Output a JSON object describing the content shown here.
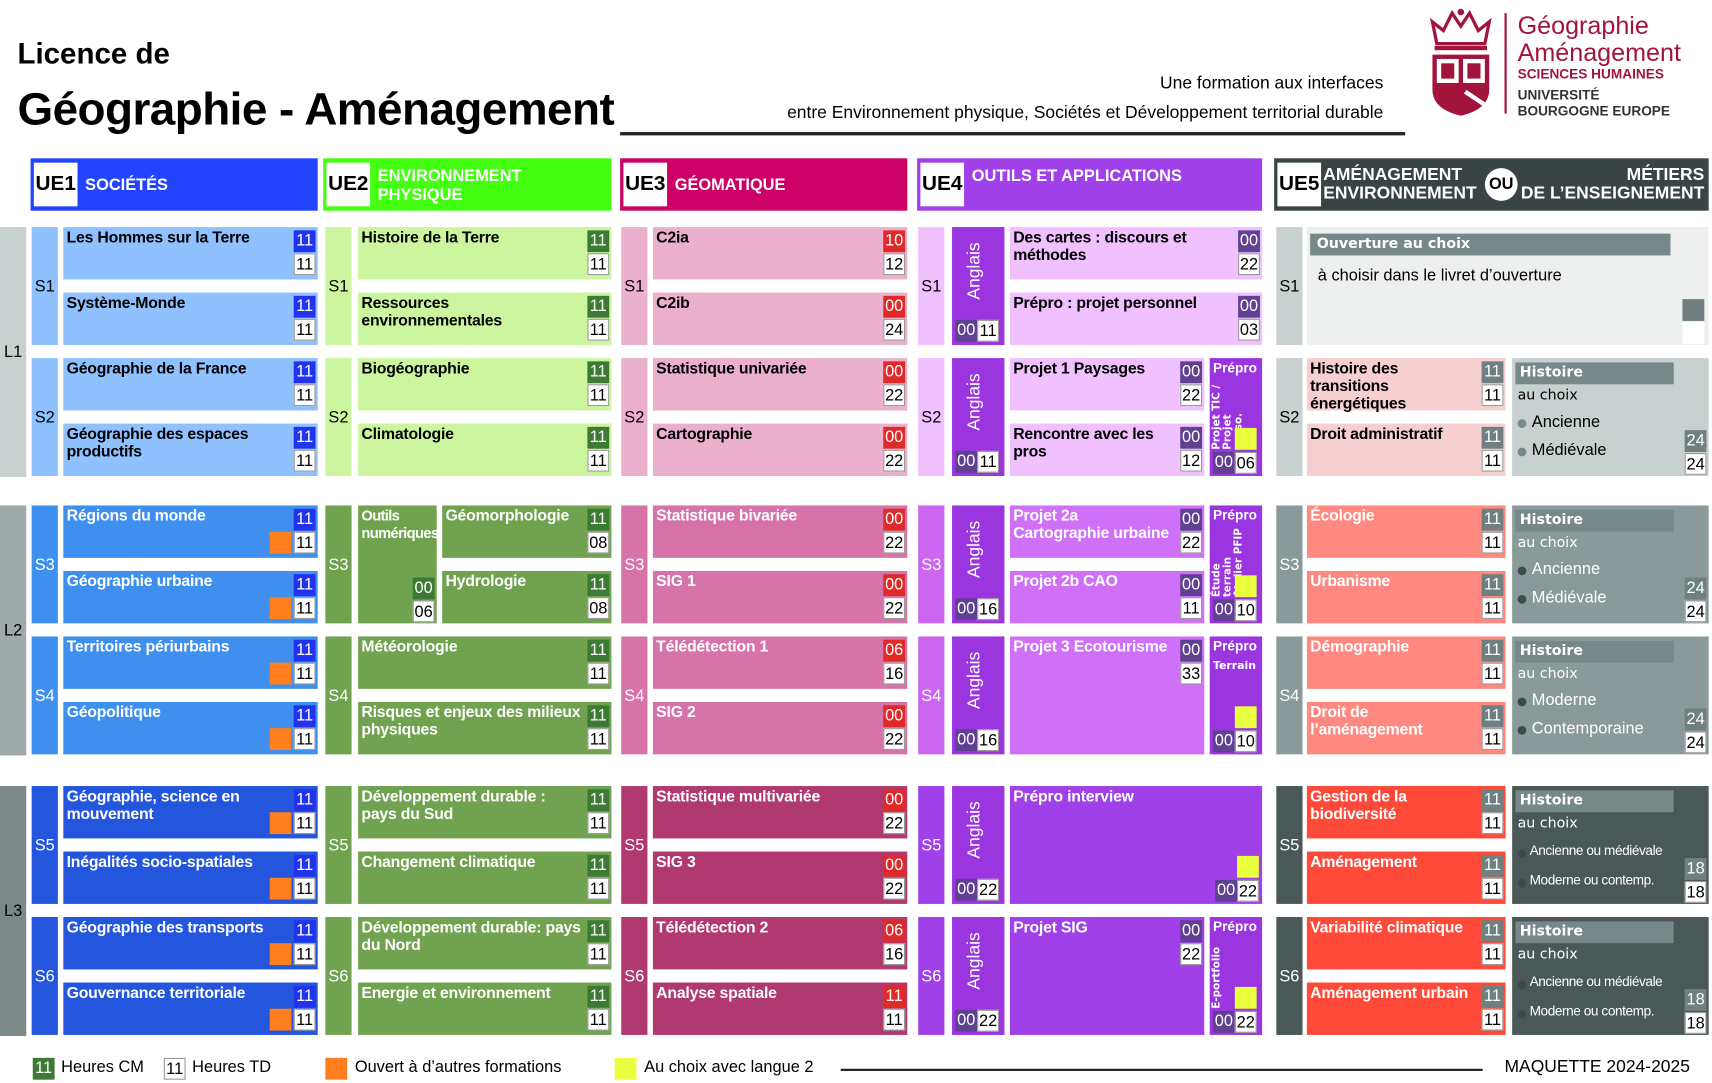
{
  "header": {
    "line1": "Licence de",
    "line2": "Géographie - Aménagement",
    "tagline1": "Une formation aux interfaces",
    "tagline2": "entre Environnement physique, Sociétés et Développement territorial durable"
  },
  "logo": {
    "l1": "Géographie",
    "l2": "Aménagement",
    "l3": "SCIENCES HUMAINES",
    "l4": "UNIVERSITÉ",
    "l5": "BOURGOGNE EUROPE",
    "color": "#a3143c"
  },
  "years": [
    "L1",
    "L2",
    "L3"
  ],
  "year_colors": [
    "#c8d0d0",
    "#a0aaaa",
    "#7d8888"
  ],
  "ues": [
    {
      "code": "UE1",
      "title": "SOCIÉTÉS",
      "color": "#2244ff",
      "colors": {
        "course": [
          "#8fc1ff",
          "#3f8fef",
          "#2456dd"
        ],
        "text": [
          "#000",
          "#fff",
          "#fff"
        ],
        "sem": [
          "#8fc1ff",
          "#3f8fef",
          "#2456dd"
        ],
        "cm": "#2233ee"
      },
      "semesters": [
        {
          "label": "S1",
          "courses": [
            {
              "name": "Les Hommes sur la Terre",
              "cm": "11",
              "td": "11"
            },
            {
              "name": "Système-Monde",
              "cm": "11",
              "td": "11"
            }
          ]
        },
        {
          "label": "S2",
          "courses": [
            {
              "name": "Géographie de la France",
              "cm": "11",
              "td": "11"
            },
            {
              "name": "Géographie des espaces productifs",
              "cm": "11",
              "td": "11"
            }
          ]
        },
        {
          "label": "S3",
          "courses": [
            {
              "name": "Régions du monde",
              "cm": "11",
              "td": "11",
              "open": true
            },
            {
              "name": "Géographie urbaine",
              "cm": "11",
              "td": "11",
              "open": true
            }
          ]
        },
        {
          "label": "S4",
          "courses": [
            {
              "name": "Territoires périurbains",
              "cm": "11",
              "td": "11",
              "open": true
            },
            {
              "name": "Géopolitique",
              "cm": "11",
              "td": "11",
              "open": true
            }
          ]
        },
        {
          "label": "S5",
          "courses": [
            {
              "name": "Géographie, science en mouvement",
              "cm": "11",
              "td": "11",
              "open": true
            },
            {
              "name": "Inégalités socio-spatiales",
              "cm": "11",
              "td": "11",
              "open": true
            }
          ]
        },
        {
          "label": "S6",
          "courses": [
            {
              "name": "Géographie des transports",
              "cm": "11",
              "td": "11",
              "open": true
            },
            {
              "name": "Gouvernance territoriale",
              "cm": "11",
              "td": "11",
              "open": true
            }
          ]
        }
      ]
    },
    {
      "code": "UE2",
      "title": "ENVIRONNEMENT PHYSIQUE",
      "color": "#44ff11",
      "colors": {
        "course": [
          "#ccf5a0",
          "#70a250",
          "#70a250"
        ],
        "text": [
          "#000",
          "#fff",
          "#fff"
        ],
        "sem": [
          "#ccf5a0",
          "#70a250",
          "#70a250"
        ],
        "cm": "#3d7a33"
      },
      "semesters": [
        {
          "label": "S1",
          "courses": [
            {
              "name": "Histoire de la Terre",
              "cm": "11",
              "td": "11"
            },
            {
              "name": "Ressources environnementales",
              "cm": "11",
              "td": "11"
            }
          ]
        },
        {
          "label": "S2",
          "courses": [
            {
              "name": "Biogéographie",
              "cm": "11",
              "td": "11"
            },
            {
              "name": "Climatologie",
              "cm": "11",
              "td": "11"
            }
          ]
        },
        {
          "label": "S3",
          "split": {
            "name": "Outils numériques",
            "cm": "00",
            "td": "06"
          },
          "courses": [
            {
              "name": "Géomorphologie",
              "cm": "11",
              "td": "08"
            },
            {
              "name": "Hydrologie",
              "cm": "11",
              "td": "08"
            }
          ]
        },
        {
          "label": "S4",
          "courses": [
            {
              "name": "Météorologie",
              "cm": "11",
              "td": "11"
            },
            {
              "name": "Risques et enjeux des milieux physiques",
              "cm": "11",
              "td": "11"
            }
          ]
        },
        {
          "label": "S5",
          "courses": [
            {
              "name": "Développement durable : pays du Sud",
              "cm": "11",
              "td": "11"
            },
            {
              "name": "Changement climatique",
              "cm": "11",
              "td": "11"
            }
          ]
        },
        {
          "label": "S6",
          "courses": [
            {
              "name": "Développement durable: pays du Nord",
              "cm": "11",
              "td": "11"
            },
            {
              "name": "Energie et environnement",
              "cm": "11",
              "td": "11"
            }
          ]
        }
      ]
    },
    {
      "code": "UE3",
      "title": "GÉOMATIQUE",
      "color": "#cc0066",
      "colors": {
        "course": [
          "#ebb0cc",
          "#d673a8",
          "#b03a70"
        ],
        "text": [
          "#000",
          "#fff",
          "#fff"
        ],
        "sem": [
          "#ebb0cc",
          "#d673a8",
          "#b03a70"
        ],
        "cm": "#e02a2a"
      },
      "semesters": [
        {
          "label": "S1",
          "courses": [
            {
              "name": "C2ia",
              "cm": "10",
              "td": "12"
            },
            {
              "name": "C2ib",
              "cm": "00",
              "td": "24"
            }
          ]
        },
        {
          "label": "S2",
          "courses": [
            {
              "name": "Statistique univariée",
              "cm": "00",
              "td": "22"
            },
            {
              "name": "Cartographie",
              "cm": "00",
              "td": "22"
            }
          ]
        },
        {
          "label": "S3",
          "courses": [
            {
              "name": "Statistique  bivariée",
              "cm": "00",
              "td": "22"
            },
            {
              "name": "SIG 1",
              "cm": "00",
              "td": "22"
            }
          ]
        },
        {
          "label": "S4",
          "courses": [
            {
              "name": "Télédétection 1",
              "cm": "06",
              "td": "16"
            },
            {
              "name": "SIG 2",
              "cm": "00",
              "td": "22"
            }
          ]
        },
        {
          "label": "S5",
          "courses": [
            {
              "name": "Statistique multivariée",
              "cm": "00",
              "td": "22"
            },
            {
              "name": "SIG 3",
              "cm": "00",
              "td": "22"
            }
          ]
        },
        {
          "label": "S6",
          "courses": [
            {
              "name": "Télédétection 2",
              "cm": "06",
              "td": "16"
            },
            {
              "name": "Analyse spatiale",
              "cm": "11",
              "td": "11"
            }
          ]
        }
      ]
    },
    {
      "code": "UE4",
      "title": "OUTILS ET APPLICATIONS",
      "color": "#a040e8",
      "colors": {
        "course": [
          "#f0c0ff",
          "#d070f8",
          "#a040e8"
        ],
        "text": [
          "#000",
          "#fff",
          "#fff"
        ],
        "sem": [
          "#f0c0ff",
          "#cc66f0",
          "#a040e8"
        ],
        "cm": "#604090",
        "anglais": "#9a35e0",
        "prepro": "#9a35e0",
        "yellow": "#eaff40"
      },
      "semesters": [
        {
          "label": "S1",
          "anglais": {
            "name": "Anglais",
            "cm": "00",
            "td": "11"
          },
          "courses": [
            {
              "name": "Des cartes : discours et méthodes",
              "cm": "00",
              "td": "22"
            },
            {
              "name": "Prépro : projet personnel",
              "cm": "00",
              "td": "03"
            }
          ],
          "light": true
        },
        {
          "label": "S2",
          "anglais": {
            "name": "Anglais",
            "cm": "00",
            "td": "11"
          },
          "courses": [
            {
              "name": "Projet 1 Paysages",
              "cm": "00",
              "td": "22"
            },
            {
              "name": "Rencontre avec les pros",
              "cm": "00",
              "td": "12"
            }
          ],
          "light": true,
          "prepro": {
            "title": "Prépro",
            "sub": "Projet TIC / Projet perso.",
            "cm": "00",
            "td": "06"
          }
        },
        {
          "label": "S3",
          "anglais": {
            "name": "Anglais",
            "cm": "00",
            "td": "16"
          },
          "courses": [
            {
              "name": "Projet 2a Cartographie urbaine",
              "cm": "00",
              "td": "22"
            },
            {
              "name": "Projet 2b CAO",
              "cm": "00",
              "td": "11"
            }
          ],
          "prepro": {
            "title": "Prépro",
            "sub": "Étude terrain Atelier PFIP",
            "cm": "00",
            "td": "10"
          }
        },
        {
          "label": "S4",
          "anglais": {
            "name": "Anglais",
            "cm": "00",
            "td": "16"
          },
          "courses": [
            {
              "name": "Projet 3 Ecotourisme",
              "cm": "00",
              "td": "33"
            }
          ],
          "prepro": {
            "title": "Prépro",
            "sub": "Terrain",
            "horizontal": true,
            "cm": "00",
            "td": "10"
          }
        },
        {
          "label": "S5",
          "anglais": {
            "name": "Anglais",
            "cm": "00",
            "td": "22"
          },
          "wide": {
            "name": "Prépro interview",
            "cm": "00",
            "td": "22"
          }
        },
        {
          "label": "S6",
          "anglais": {
            "name": "Anglais",
            "cm": "00",
            "td": "22"
          },
          "courses": [
            {
              "name": "Projet  SIG",
              "cm": "00",
              "td": "22"
            }
          ],
          "prepro": {
            "title": "Prépro",
            "sub": "E-portfolio",
            "cm": "00",
            "td": "22"
          }
        }
      ]
    },
    {
      "code": "UE5",
      "title_left": [
        "AMÉNAGEMENT",
        "ENVIRONNEMENT"
      ],
      "or": "OU",
      "title_right": [
        "MÉTIERS",
        "DE L’ENSEIGNEMENT"
      ],
      "color": "#3a4444",
      "colors": {
        "course": [
          "#f6d0d0",
          "#ff8880",
          "#ff4a3a"
        ],
        "text": [
          "#000",
          "#fff",
          "#fff"
        ],
        "sem": [
          "#c8d0d0",
          "#8a9a9a",
          "#4a5858"
        ],
        "hist": [
          "#c8d0d0",
          "#8a9a9a",
          "#4a5858"
        ],
        "histtext": [
          "#000",
          "#fff",
          "#fff"
        ],
        "cm": "#708080",
        "bar": "#778888"
      },
      "semesters": [
        {
          "label": "S1",
          "ouverture": {
            "title": "Ouverture au choix",
            "text": "à choisir dans le livret d’ouverture"
          }
        },
        {
          "label": "S2",
          "courses": [
            {
              "name": "Histoire des transitions énergétiques",
              "cm": "11",
              "td": "11"
            },
            {
              "name": "Droit administratif",
              "cm": "11",
              "td": "11"
            }
          ],
          "histoire": {
            "title": "Histoire",
            "sub": "au choix",
            "options": [
              "Ancienne",
              "Médiévale"
            ],
            "cm": "24",
            "td": "24"
          }
        },
        {
          "label": "S3",
          "courses": [
            {
              "name": "Écologie",
              "cm": "11",
              "td": "11"
            },
            {
              "name": "Urbanisme",
              "cm": "11",
              "td": "11"
            }
          ],
          "histoire": {
            "title": "Histoire",
            "sub": "au choix",
            "options": [
              "Ancienne",
              "Médiévale"
            ],
            "cm": "24",
            "td": "24"
          }
        },
        {
          "label": "S4",
          "courses": [
            {
              "name": "Démographie",
              "cm": "11",
              "td": "11"
            },
            {
              "name": "Droit de l’aménagement",
              "cm": "11",
              "td": "11"
            }
          ],
          "histoire": {
            "title": "Histoire",
            "sub": "au choix",
            "options": [
              "Moderne",
              "Contemporaine"
            ],
            "cm": "24",
            "td": "24"
          }
        },
        {
          "label": "S5",
          "courses": [
            {
              "name": "Gestion de la biodiversité",
              "cm": "11",
              "td": "11"
            },
            {
              "name": "Aménagement",
              "cm": "11",
              "td": "11"
            }
          ],
          "histoire": {
            "title": "Histoire",
            "sub": "au choix",
            "options": [
              "Ancienne ou médiévale",
              "Moderne ou contemp."
            ],
            "cm": "18",
            "td": "18",
            "small": true
          }
        },
        {
          "label": "S6",
          "courses": [
            {
              "name": "Variabilité climatique",
              "cm": "11",
              "td": "11"
            },
            {
              "name": "Aménagement urbain",
              "cm": "11",
              "td": "11"
            }
          ],
          "histoire": {
            "title": "Histoire",
            "sub": "au choix",
            "options": [
              "Ancienne ou médiévale",
              "Moderne ou contemp."
            ],
            "cm": "18",
            "td": "18",
            "small": true
          }
        }
      ]
    }
  ],
  "legend": {
    "cm_sample": "11",
    "cm_label": "Heures CM",
    "cm_color": "#3d7a33",
    "td_sample": "11",
    "td_label": "Heures TD",
    "open_label": "Ouvert à d’autres formations",
    "open_color": "#ff7f1f",
    "lang_label": "Au choix avec langue 2",
    "lang_color": "#eaff40",
    "version": "MAQUETTE 2024-2025"
  }
}
